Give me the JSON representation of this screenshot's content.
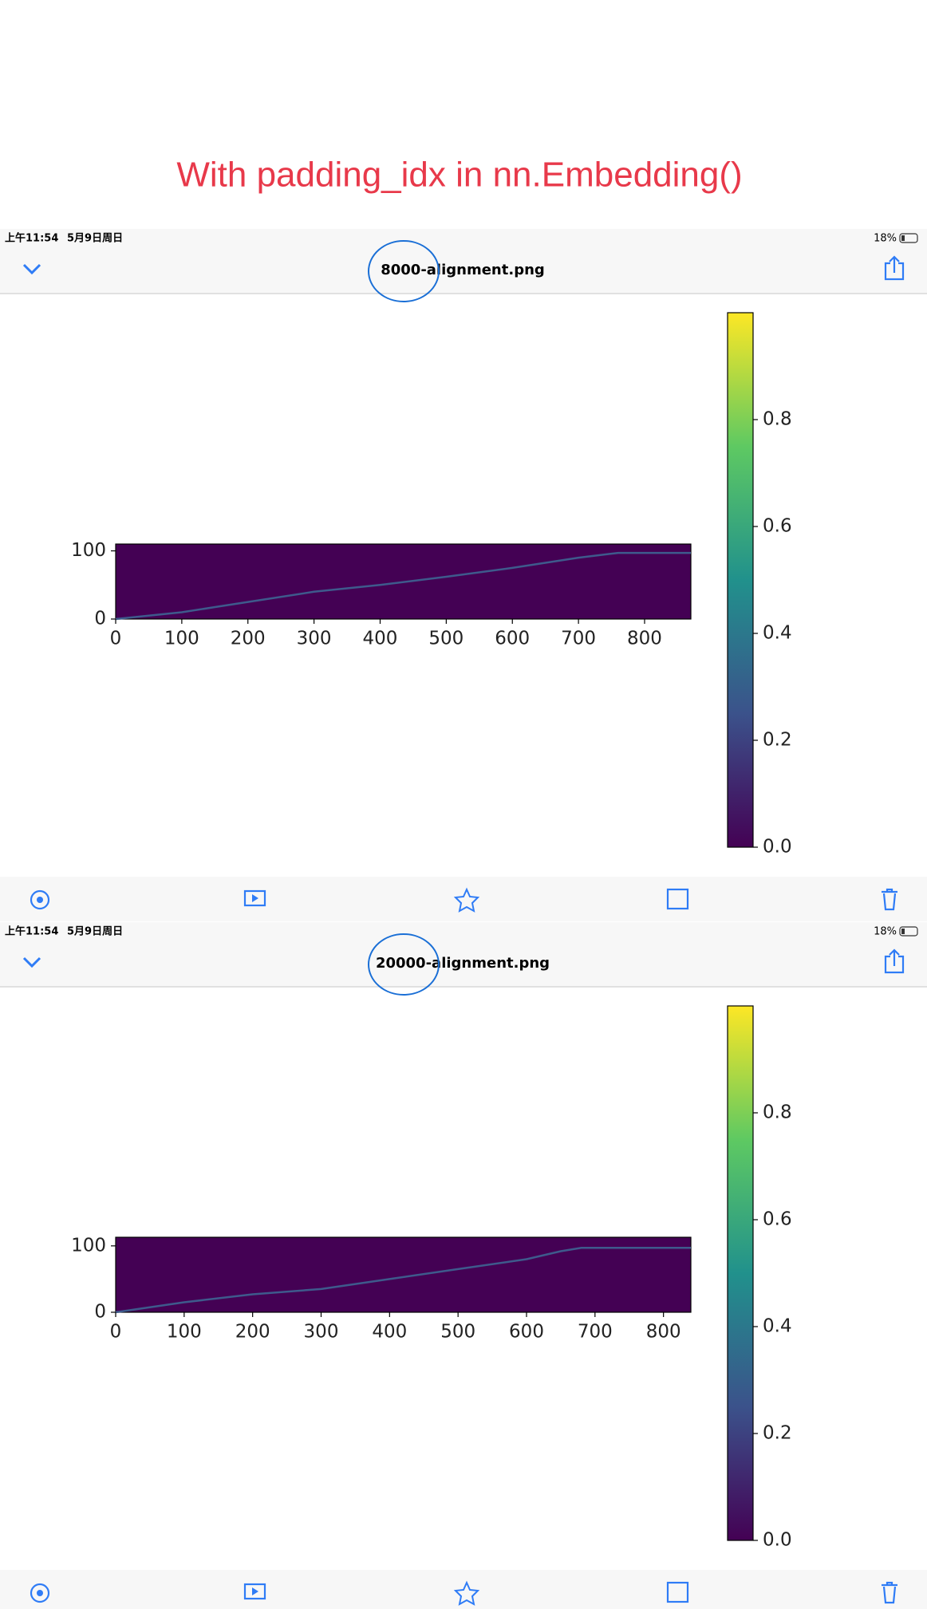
{
  "title": "With padding_idx in nn.Embedding()",
  "screens": [
    {
      "status": {
        "time": "上午11:54",
        "date": "5月9日周日",
        "battery": "18%"
      },
      "filename": "8000-alignment.png",
      "chart": {
        "type": "heatmap",
        "background": "#440154",
        "line_color": "#3e5a8c",
        "xlim": [
          0,
          870
        ],
        "ylim": [
          0,
          110
        ],
        "xticks": [
          0,
          100,
          200,
          300,
          400,
          500,
          600,
          700,
          800
        ],
        "yticks": [
          0,
          100
        ],
        "alignment": {
          "x": [
            0,
            100,
            200,
            300,
            400,
            500,
            600,
            700,
            760,
            870
          ],
          "y": [
            0,
            10,
            25,
            40,
            50,
            62,
            75,
            90,
            97,
            97
          ]
        },
        "colorbar": {
          "lim": [
            0,
            1
          ],
          "ticks": [
            {
              "value": 0,
              "label": "0.0"
            },
            0.2,
            0.4,
            0.6,
            0.8
          ]
        }
      }
    },
    {
      "status": {
        "time": "上午11:54",
        "date": "5月9日周日",
        "battery": "18%"
      },
      "filename": "20000-alignment.png",
      "chart": {
        "type": "heatmap",
        "background": "#440154",
        "line_color": "#3e5a8c",
        "xlim": [
          0,
          840
        ],
        "ylim": [
          0,
          113
        ],
        "xticks": [
          0,
          100,
          200,
          300,
          400,
          500,
          600,
          700,
          800
        ],
        "yticks": [
          0,
          100
        ],
        "alignment": {
          "x": [
            0,
            100,
            200,
            300,
            400,
            500,
            600,
            650,
            680,
            840
          ],
          "y": [
            0,
            15,
            27,
            35,
            50,
            65,
            80,
            92,
            97,
            97
          ]
        },
        "colorbar": {
          "lim": [
            0,
            1
          ],
          "ticks": [
            {
              "value": 0,
              "label": "0.0"
            },
            0.2,
            0.4,
            0.6,
            0.8
          ]
        }
      }
    }
  ]
}
